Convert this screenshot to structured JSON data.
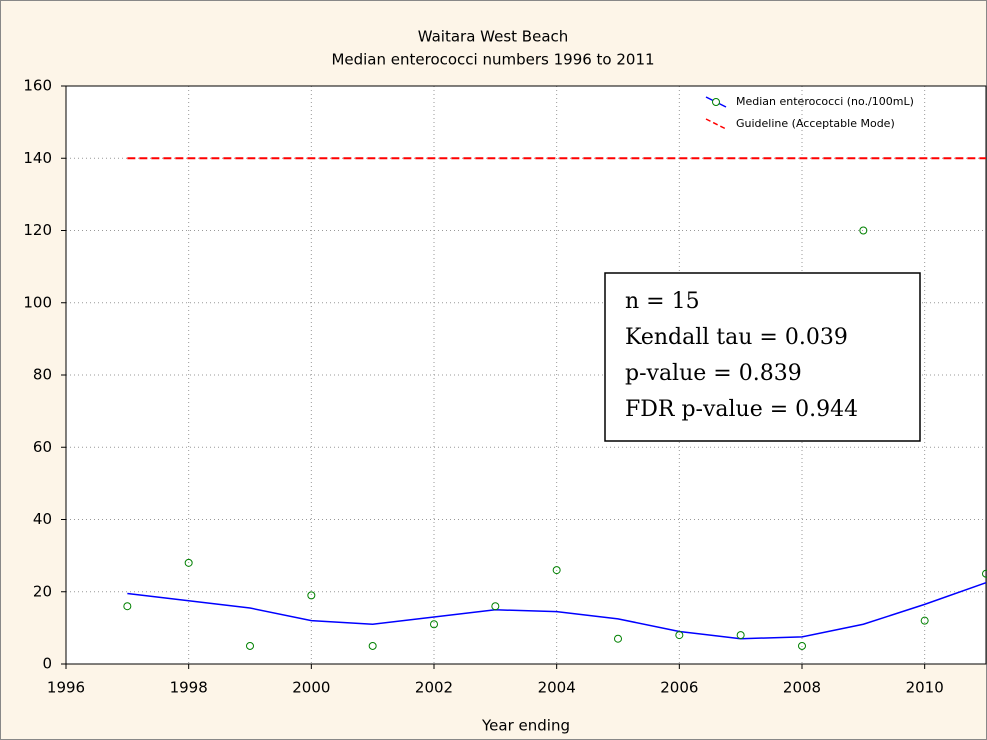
{
  "chart_data": {
    "type": "scatter",
    "title": "Waitara West Beach",
    "subtitle": "Median enterococci numbers 1996 to 2011",
    "x_label": "Year ending",
    "xlim": [
      1996,
      2011
    ],
    "xticks": [
      1996,
      1998,
      2000,
      2002,
      2004,
      2006,
      2008,
      2010
    ],
    "ylim": [
      0,
      160
    ],
    "yticks": [
      0,
      20,
      40,
      60,
      80,
      100,
      120,
      140,
      160
    ],
    "grid": true,
    "legend": "upper right",
    "series": [
      {
        "name": "Median enterococci (no./100mL)",
        "color": "#008000",
        "line_color": "#0000ff",
        "x": [
          1997,
          1998,
          1999,
          2000,
          2001,
          2002,
          2003,
          2004,
          2005,
          2006,
          2007,
          2008,
          2009,
          2010,
          2011
        ],
        "values": [
          16,
          28,
          5,
          19,
          5,
          11,
          16,
          26,
          7,
          8,
          8,
          5,
          120,
          12,
          25
        ],
        "smooth": [
          19.5,
          17.5,
          15.5,
          12,
          11,
          13,
          15,
          14.5,
          12.5,
          9,
          7,
          7.5,
          11,
          16.5,
          22.5
        ]
      },
      {
        "name": "Guideline (Acceptable Mode)",
        "color": "#ff0000",
        "dashed": true,
        "x": [
          1997,
          2011
        ],
        "values": [
          140,
          140
        ]
      }
    ],
    "annotation": [
      "n = 15",
      "Kendall tau = 0.039",
      "p-value = 0.839",
      "FDR p-value = 0.944"
    ]
  }
}
